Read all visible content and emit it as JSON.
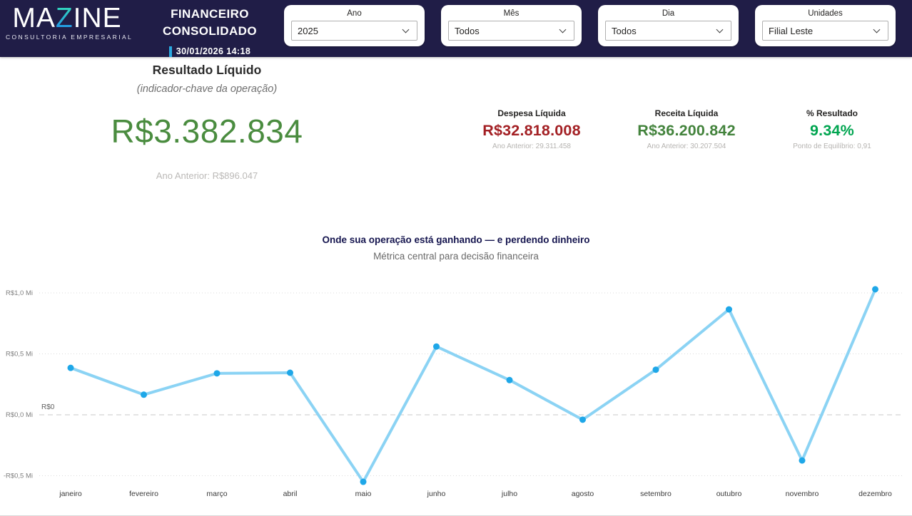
{
  "header": {
    "logo": {
      "brand_pre": "MA",
      "brand_accent": "Z",
      "brand_post": "INE",
      "tagline": "CONSULTORIA EMPRESARIAL"
    },
    "title_line1": "FINANCEIRO",
    "title_line2": "CONSOLIDADO",
    "timestamp": "30/01/2026 14:18",
    "filters": [
      {
        "label": "Ano",
        "value": "2025"
      },
      {
        "label": "Mês",
        "value": "Todos"
      },
      {
        "label": "Dia",
        "value": "Todos"
      },
      {
        "label": "Unidades",
        "value": "Filial Leste"
      }
    ]
  },
  "kpi": {
    "main": {
      "title": "Resultado Líquido",
      "subtitle": "(indicador-chave da operação)",
      "value": "R$3.382.834",
      "prev": "Ano Anterior: R$896.047",
      "color": "#4A8C3F"
    },
    "secondary": [
      {
        "label": "Despesa Líquida",
        "value": "R$32.818.008",
        "sub": "Ano Anterior: 29.311.458",
        "color": "#A32024"
      },
      {
        "label": "Receita Líquida",
        "value": "R$36.200.842",
        "sub": "Ano Anterior: 30.207.504",
        "color": "#43833C"
      },
      {
        "label": "% Resultado",
        "value": "9.34%",
        "sub": "Ponto de Equilíbrio: 0,91",
        "color": "#00A550"
      }
    ]
  },
  "chart_data": {
    "type": "line",
    "title": "Onde sua operação está ganhando — e perdendo dinheiro",
    "subtitle": "Métrica central para decisão financeira",
    "categories": [
      "janeiro",
      "fevereiro",
      "março",
      "abril",
      "maio",
      "junho",
      "julho",
      "agosto",
      "setembro",
      "outubro",
      "novembro",
      "dezembro"
    ],
    "values_mi": [
      0.385,
      0.165,
      0.34,
      0.345,
      -0.55,
      0.56,
      0.285,
      -0.04,
      0.37,
      0.865,
      -0.375,
      1.03
    ],
    "unit": "R$ milhões",
    "ylabel": "",
    "xlabel": "",
    "ylim": [
      -0.65,
      1.15
    ],
    "grid": "horizontal-dotted",
    "legend": "none",
    "y_ticks": [
      {
        "label": "R$1,0 Mi",
        "value": 1.0
      },
      {
        "label": "R$0,5 Mi",
        "value": 0.5
      },
      {
        "label": "R$0,0 Mi",
        "value": 0.0
      },
      {
        "label": "-R$0,5 Mi",
        "value": -0.5
      }
    ],
    "zero_line_label": "R$0",
    "line_color": "#8BD3F4",
    "marker_color": "#1EA7E8"
  },
  "colors": {
    "header_bg": "#201D47",
    "timestamp_accent": "#2AA9E0",
    "logo_gradient_top": "#35E3B4",
    "logo_gradient_bottom": "#1E86F0",
    "grid_dotted": "#DBDBDB",
    "grid_zero_dashed": "#C9C9C9"
  }
}
